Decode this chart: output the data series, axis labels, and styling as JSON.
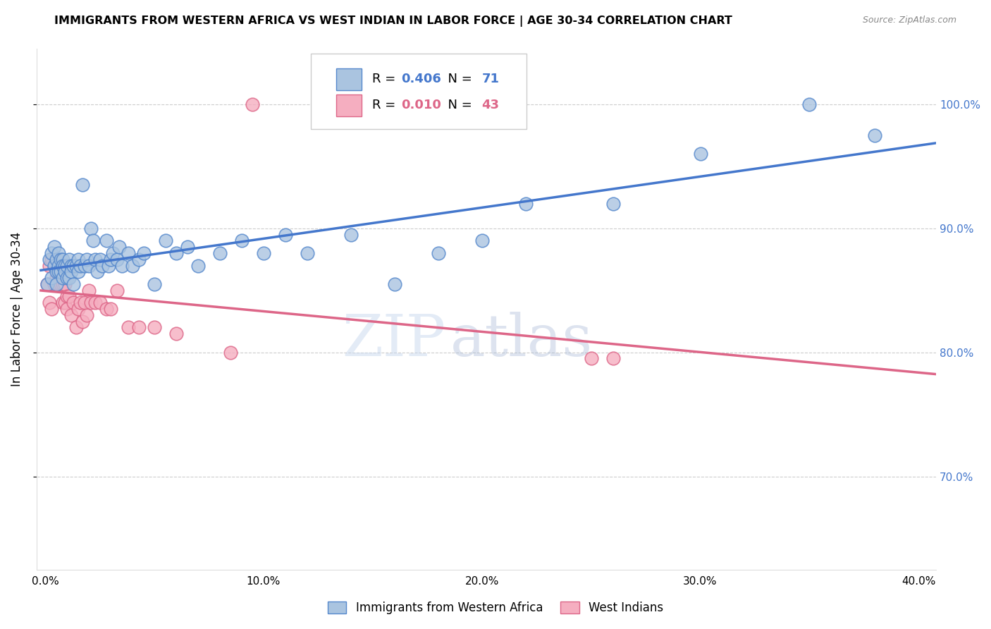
{
  "title": "IMMIGRANTS FROM WESTERN AFRICA VS WEST INDIAN IN LABOR FORCE | AGE 30-34 CORRELATION CHART",
  "source": "Source: ZipAtlas.com",
  "ylabel": "In Labor Force | Age 30-34",
  "watermark_zip": "ZIP",
  "watermark_atlas": "atlas",
  "series1_label": "Immigrants from Western Africa",
  "series2_label": "West Indians",
  "series1_color": "#aac4e0",
  "series2_color": "#f5aec0",
  "series1_edge": "#5588cc",
  "series2_edge": "#dd6688",
  "line1_color": "#4477cc",
  "line2_color": "#dd6688",
  "R1": 0.406,
  "N1": 71,
  "R2": 0.01,
  "N2": 43,
  "xlim": [
    -0.004,
    0.408
  ],
  "ylim": [
    0.625,
    1.045
  ],
  "xticks": [
    0.0,
    0.1,
    0.2,
    0.3,
    0.4
  ],
  "yticks_right": [
    0.7,
    0.8,
    0.9,
    1.0
  ],
  "ytick_labels_right": [
    "70.0%",
    "80.0%",
    "90.0%",
    "100.0%"
  ],
  "xtick_labels": [
    "0.0%",
    "10.0%",
    "20.0%",
    "30.0%",
    "40.0%"
  ],
  "blue_x": [
    0.001,
    0.002,
    0.003,
    0.003,
    0.004,
    0.004,
    0.005,
    0.005,
    0.005,
    0.006,
    0.006,
    0.006,
    0.007,
    0.007,
    0.008,
    0.008,
    0.008,
    0.009,
    0.009,
    0.01,
    0.01,
    0.011,
    0.011,
    0.012,
    0.012,
    0.013,
    0.013,
    0.014,
    0.015,
    0.015,
    0.016,
    0.017,
    0.018,
    0.019,
    0.02,
    0.021,
    0.022,
    0.023,
    0.024,
    0.025,
    0.026,
    0.028,
    0.029,
    0.03,
    0.031,
    0.033,
    0.034,
    0.035,
    0.038,
    0.04,
    0.043,
    0.045,
    0.05,
    0.055,
    0.06,
    0.065,
    0.07,
    0.08,
    0.09,
    0.1,
    0.11,
    0.12,
    0.14,
    0.16,
    0.18,
    0.2,
    0.22,
    0.26,
    0.3,
    0.35,
    0.38
  ],
  "blue_y": [
    0.855,
    0.875,
    0.86,
    0.88,
    0.87,
    0.885,
    0.865,
    0.875,
    0.855,
    0.87,
    0.88,
    0.865,
    0.875,
    0.865,
    0.86,
    0.875,
    0.87,
    0.87,
    0.865,
    0.86,
    0.87,
    0.875,
    0.86,
    0.87,
    0.865,
    0.87,
    0.855,
    0.87,
    0.875,
    0.865,
    0.87,
    0.935,
    0.87,
    0.875,
    0.87,
    0.9,
    0.89,
    0.875,
    0.865,
    0.875,
    0.87,
    0.89,
    0.87,
    0.875,
    0.88,
    0.875,
    0.885,
    0.87,
    0.88,
    0.87,
    0.875,
    0.88,
    0.855,
    0.89,
    0.88,
    0.885,
    0.87,
    0.88,
    0.89,
    0.88,
    0.895,
    0.88,
    0.895,
    0.855,
    0.88,
    0.89,
    0.92,
    0.92,
    0.96,
    1.0,
    0.975
  ],
  "pink_x": [
    0.001,
    0.002,
    0.002,
    0.003,
    0.003,
    0.004,
    0.004,
    0.005,
    0.005,
    0.006,
    0.006,
    0.007,
    0.007,
    0.008,
    0.008,
    0.009,
    0.009,
    0.01,
    0.01,
    0.011,
    0.012,
    0.013,
    0.014,
    0.015,
    0.016,
    0.017,
    0.018,
    0.019,
    0.02,
    0.021,
    0.023,
    0.025,
    0.028,
    0.03,
    0.033,
    0.038,
    0.043,
    0.05,
    0.06,
    0.085,
    0.095,
    0.25,
    0.26
  ],
  "pink_y": [
    0.855,
    0.87,
    0.84,
    0.875,
    0.835,
    0.855,
    0.87,
    0.86,
    0.875,
    0.855,
    0.87,
    0.855,
    0.87,
    0.855,
    0.84,
    0.855,
    0.84,
    0.845,
    0.835,
    0.845,
    0.83,
    0.84,
    0.82,
    0.835,
    0.84,
    0.825,
    0.84,
    0.83,
    0.85,
    0.84,
    0.84,
    0.84,
    0.835,
    0.835,
    0.85,
    0.82,
    0.82,
    0.82,
    0.815,
    0.8,
    1.0,
    0.795,
    0.795
  ]
}
